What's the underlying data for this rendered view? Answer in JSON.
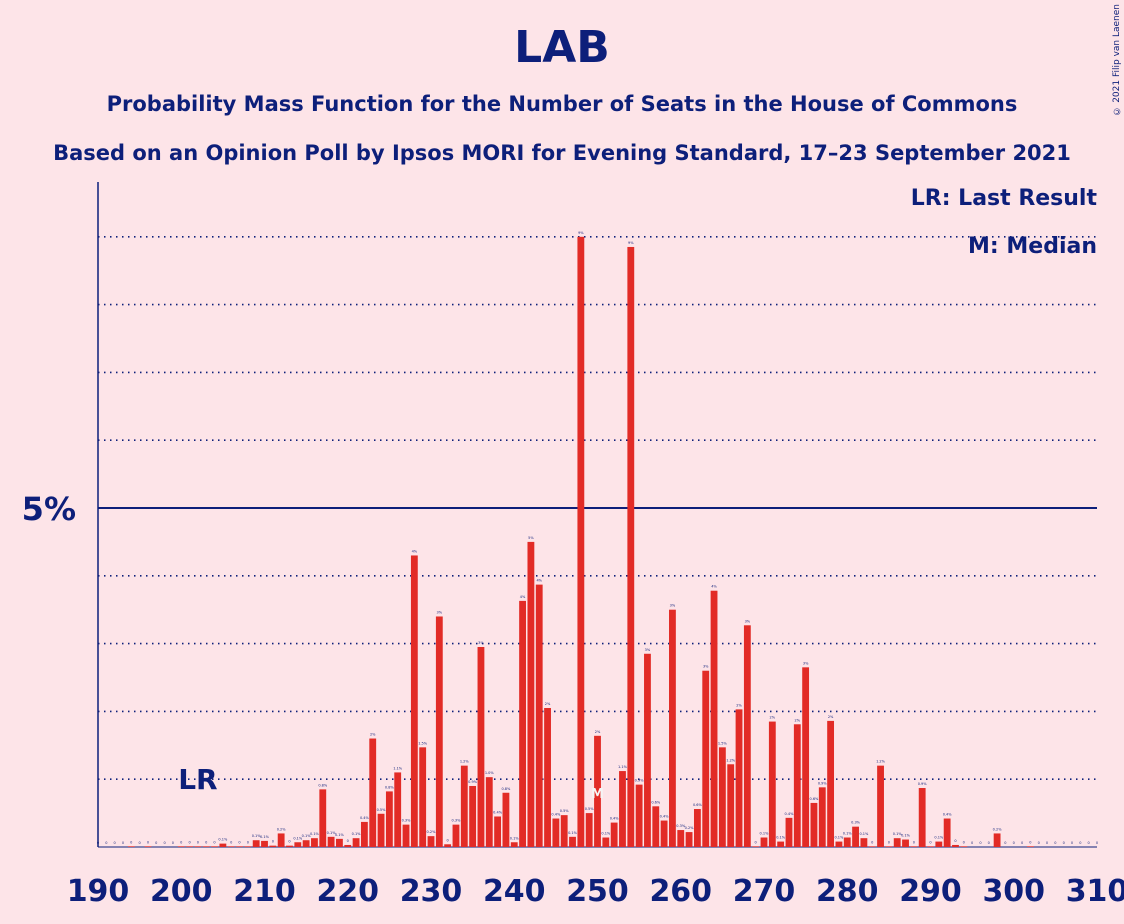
{
  "title": "LAB",
  "subtitle1": "Probability Mass Function for the Number of Seats in the House of Commons",
  "subtitle2": "Based on an Opinion Poll by Ipsos MORI for Evening Standard, 17–23 September 2021",
  "copyright": "© 2021 Filip van Laenen",
  "legend": {
    "lr": "LR: Last Result",
    "m": "M: Median"
  },
  "markers": {
    "lr_label": "LR",
    "lr_seat": 202,
    "median_label": "M",
    "median_seat": 250
  },
  "colors": {
    "bar": "#e22b26",
    "text": "#0d1f7a",
    "background": "#fde4e8"
  },
  "chart_data": {
    "type": "bar",
    "x_range": [
      190,
      310
    ],
    "xticks": [
      190,
      200,
      210,
      220,
      230,
      240,
      250,
      260,
      270,
      280,
      290,
      300,
      310
    ],
    "xtick_labels": [
      "190",
      "200",
      "210",
      "220",
      "230",
      "240",
      "250",
      "260",
      "270",
      "280",
      "290",
      "300",
      "310"
    ],
    "ytick_label": "5%",
    "ytick_value": 5,
    "ylim": [
      0,
      9
    ],
    "y_gridlines": [
      1,
      2,
      3,
      4,
      5,
      6,
      7,
      8,
      9
    ],
    "x": [
      190,
      191,
      192,
      193,
      194,
      195,
      196,
      197,
      198,
      199,
      200,
      201,
      202,
      203,
      204,
      205,
      206,
      207,
      208,
      209,
      210,
      211,
      212,
      213,
      214,
      215,
      216,
      217,
      218,
      219,
      220,
      221,
      222,
      223,
      224,
      225,
      226,
      227,
      228,
      229,
      230,
      231,
      232,
      233,
      234,
      235,
      236,
      237,
      238,
      239,
      240,
      241,
      242,
      243,
      244,
      245,
      246,
      247,
      248,
      249,
      250,
      251,
      252,
      253,
      254,
      255,
      256,
      257,
      258,
      259,
      260,
      261,
      262,
      263,
      264,
      265,
      266,
      267,
      268,
      269,
      270,
      271,
      272,
      273,
      274,
      275,
      276,
      277,
      278,
      279,
      280,
      281,
      282,
      283,
      284,
      285,
      286,
      287,
      288,
      289,
      290,
      291,
      292,
      293,
      294,
      295,
      296,
      297,
      298,
      299,
      300,
      301,
      302,
      303,
      304,
      305,
      306,
      307,
      308,
      309,
      310
    ],
    "values": [
      0,
      0,
      0,
      0,
      0.01,
      0,
      0.01,
      0,
      0,
      0,
      0.01,
      0.01,
      0.01,
      0.01,
      0.01,
      0.05,
      0.01,
      0.01,
      0.01,
      0.1,
      0.09,
      0.02,
      0.2,
      0.02,
      0.07,
      0.1,
      0.13,
      0.85,
      0.15,
      0.12,
      0.03,
      0.13,
      0.37,
      1.6,
      0.49,
      0.82,
      1.1,
      0.33,
      4.3,
      1.47,
      0.16,
      3.4,
      0.04,
      0.33,
      1.2,
      0.9,
      2.95,
      1.03,
      0.45,
      0.8,
      0.07,
      3.63,
      4.5,
      3.87,
      2.05,
      0.42,
      0.47,
      0.15,
      9,
      0.5,
      1.64,
      0.14,
      0.36,
      1.12,
      8.85,
      0.92,
      2.85,
      0.6,
      0.39,
      3.5,
      0.25,
      0.22,
      0.56,
      2.6,
      3.78,
      1.47,
      1.22,
      2.03,
      3.27,
      0.01,
      0.14,
      1.85,
      0.08,
      0.43,
      1.81,
      2.65,
      0.65,
      0.88,
      1.86,
      0.08,
      0.14,
      0.3,
      0.13,
      0.01,
      1.2,
      0.01,
      0.13,
      0.11,
      0.01,
      0.87,
      0.01,
      0.08,
      0.42,
      0.03,
      0.01,
      0,
      0,
      0,
      0.2,
      0,
      0,
      0,
      0.01,
      0,
      0,
      0,
      0,
      0,
      0,
      0,
      0
    ],
    "value_labels": [
      "0",
      "0",
      "0",
      "0",
      "0",
      "0",
      "0",
      "0",
      "0",
      "0",
      "0",
      "0",
      "0",
      "0",
      "0",
      "0.1%",
      "0",
      "0",
      "0",
      "0.1%",
      "0.1%",
      "0",
      "0.2%",
      "0",
      "0.1%",
      "0.1%",
      "0.1%",
      "0.8%",
      "0.1%",
      "0.1%",
      "0",
      "0.1%",
      "0.4%",
      "2%",
      "0.5%",
      "0.8%",
      "1.1%",
      "0.3%",
      "4%",
      "1.5%",
      "0.2%",
      "3%",
      "0",
      "0.3%",
      "1.2%",
      "0.9%",
      "3%",
      "1.0%",
      "0.4%",
      "0.8%",
      "0.1%",
      "4%",
      "5%",
      "4%",
      "2%",
      "0.4%",
      "0.5%",
      "0.1%",
      "9%",
      "0.5%",
      "2%",
      "0.1%",
      "0.4%",
      "1.1%",
      "9%",
      "0.9%",
      "3%",
      "0.6%",
      "0.4%",
      "3%",
      "0.3%",
      "0.2%",
      "0.6%",
      "3%",
      "4%",
      "1.5%",
      "1.2%",
      "2%",
      "3%",
      "0",
      "0.1%",
      "2%",
      "0.1%",
      "0.4%",
      "2%",
      "3%",
      "0.6%",
      "0.9%",
      "2%",
      "0.1%",
      "0.1%",
      "0.3%",
      "0.1%",
      "0",
      "1.2%",
      "0",
      "0.1%",
      "0.1%",
      "0",
      "0.9%",
      "0",
      "0.1%",
      "0.4%",
      "0",
      "0",
      "0",
      "0",
      "0",
      "0.2%",
      "0",
      "0",
      "0",
      "0",
      "0",
      "0",
      "0",
      "0",
      "0",
      "0",
      "0",
      "0"
    ]
  }
}
